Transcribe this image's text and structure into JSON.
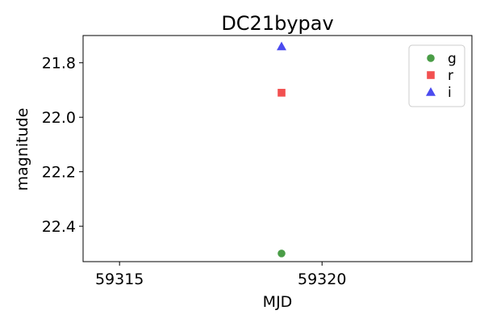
{
  "chart_data": {
    "type": "scatter",
    "title": "DC21bypav",
    "xlabel": "MJD",
    "ylabel": "magnitude",
    "xlim": [
      59314.1,
      59323.7
    ],
    "ylim": [
      22.53,
      21.7
    ],
    "y_inverted": true,
    "grid": false,
    "legend_position": "top-right",
    "xticks": [
      59315,
      59320
    ],
    "xtick_labels": [
      "59315",
      "59320"
    ],
    "yticks": [
      21.8,
      22.0,
      22.2,
      22.4
    ],
    "ytick_labels": [
      "21.8",
      "22.0",
      "22.2",
      "22.4"
    ],
    "series": [
      {
        "name": "g",
        "color": "#4a9d47",
        "marker": "circle",
        "points": [
          {
            "x": 59319.0,
            "y": 22.5
          }
        ]
      },
      {
        "name": "r",
        "color": "#f25050",
        "marker": "square",
        "points": [
          {
            "x": 59319.0,
            "y": 21.91
          }
        ]
      },
      {
        "name": "i",
        "color": "#4b4bef",
        "marker": "triangle",
        "points": [
          {
            "x": 59319.0,
            "y": 21.74
          }
        ]
      }
    ]
  }
}
